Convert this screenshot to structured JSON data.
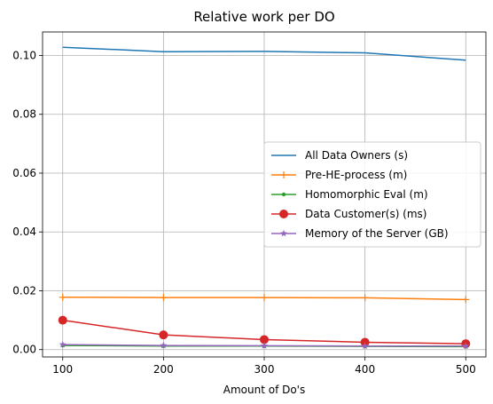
{
  "chart_data": {
    "type": "line",
    "title": "Relative work per DO",
    "xlabel": "Amount of Do's",
    "ylabel": "",
    "x": [
      100,
      200,
      300,
      400,
      500
    ],
    "xlim": [
      80,
      520
    ],
    "ylim": [
      -0.0025,
      0.108
    ],
    "xticks": [
      100,
      200,
      300,
      400,
      500
    ],
    "yticks": [
      0.0,
      0.02,
      0.04,
      0.06,
      0.08,
      0.1
    ],
    "ytick_labels": [
      "0.00",
      "0.02",
      "0.04",
      "0.06",
      "0.08",
      "0.10"
    ],
    "grid": true,
    "legend_position": "center-right",
    "series": [
      {
        "name": "All Data Owners (s)",
        "values": [
          0.1028,
          0.1013,
          0.1014,
          0.1009,
          0.0984
        ],
        "color": "#1f77b4",
        "marker": "none"
      },
      {
        "name": "Pre-HE-process (m)",
        "values": [
          0.0178,
          0.0177,
          0.0177,
          0.0176,
          0.017
        ],
        "color": "#ff7f0e",
        "marker": "plus"
      },
      {
        "name": "Homomorphic Eval (m)",
        "values": [
          0.0014,
          0.0012,
          0.0012,
          0.0011,
          0.001
        ],
        "color": "#2ca02c",
        "marker": "point"
      },
      {
        "name": "Data Customer(s) (ms)",
        "values": [
          0.01,
          0.005,
          0.0034,
          0.0025,
          0.002
        ],
        "color": "#d62728",
        "marker": "circle"
      },
      {
        "name": "Memory of the Server (GB)",
        "values": [
          0.0017,
          0.0014,
          0.0013,
          0.0012,
          0.0012
        ],
        "color": "#9467bd",
        "marker": "star"
      }
    ]
  }
}
